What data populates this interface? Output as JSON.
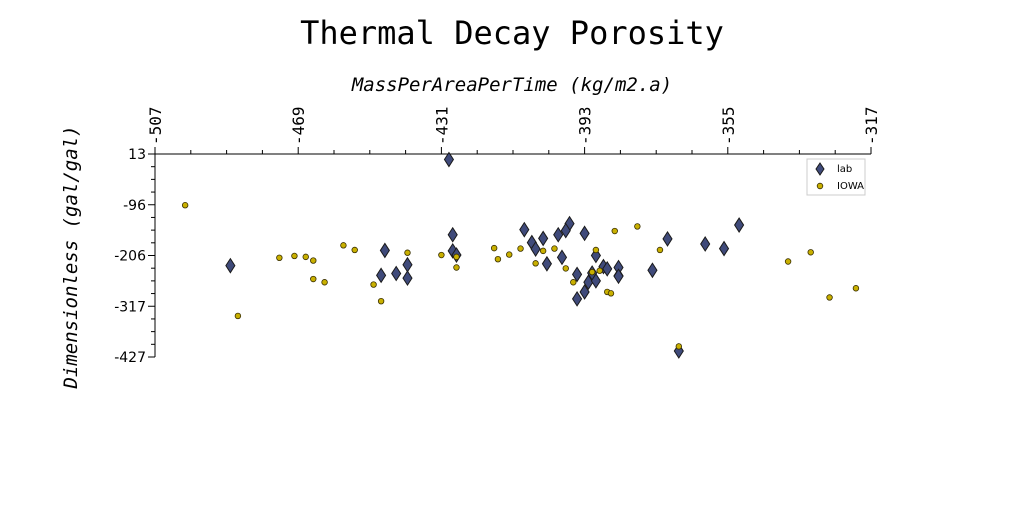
{
  "chart_data": {
    "type": "scatter",
    "title": "Thermal Decay Porosity",
    "xlabel": "MassPerAreaPerTime (kg/m2.a)",
    "ylabel": "Dimensionless (gal/gal)",
    "xlim": [
      -507,
      -317
    ],
    "ylim": [
      -427,
      13
    ],
    "x_axis_position": "top",
    "x_ticks": [
      "-507",
      "-469",
      "-431",
      "-393",
      "-355",
      "-317"
    ],
    "y_ticks": [
      "13",
      "-96",
      "-206",
      "-317",
      "-427"
    ],
    "grid": false,
    "legend_position": "top-right",
    "series": [
      {
        "name": "lab",
        "marker": "diamond",
        "color": "#3f4a7a",
        "points": [
          [
            -487,
            -229
          ],
          [
            -429,
            1
          ],
          [
            -428,
            -162
          ],
          [
            -428,
            -197
          ],
          [
            -427,
            -206
          ],
          [
            -440,
            -227
          ],
          [
            -443,
            -246
          ],
          [
            -447,
            -250
          ],
          [
            -440,
            -256
          ],
          [
            -446,
            -196
          ],
          [
            -409,
            -151
          ],
          [
            -407,
            -179
          ],
          [
            -406,
            -193
          ],
          [
            -403,
            -225
          ],
          [
            -404,
            -170
          ],
          [
            -400,
            -162
          ],
          [
            -397,
            -138
          ],
          [
            -393,
            -159
          ],
          [
            -398,
            -153
          ],
          [
            -384,
            -251
          ],
          [
            -390,
            -207
          ],
          [
            -391,
            -245
          ],
          [
            -392,
            -265
          ],
          [
            -393,
            -286
          ],
          [
            -395,
            -248
          ],
          [
            -395,
            -301
          ],
          [
            -399,
            -211
          ],
          [
            -388,
            -231
          ],
          [
            -387,
            -236
          ],
          [
            -384,
            -233
          ],
          [
            -384,
            -252
          ],
          [
            -390,
            -262
          ],
          [
            -375,
            -239
          ],
          [
            -371,
            -171
          ],
          [
            -368,
            -414
          ],
          [
            -361,
            -182
          ],
          [
            -356,
            -192
          ],
          [
            -352,
            -141
          ]
        ]
      },
      {
        "name": "IOWA",
        "marker": "circle",
        "color": "#c9b000",
        "points": [
          [
            -499,
            -98
          ],
          [
            -485,
            -338
          ],
          [
            -474,
            -212
          ],
          [
            -470,
            -208
          ],
          [
            -467,
            -210
          ],
          [
            -465,
            -218
          ],
          [
            -465,
            -258
          ],
          [
            -462,
            -265
          ],
          [
            -457,
            -185
          ],
          [
            -454,
            -195
          ],
          [
            -449,
            -270
          ],
          [
            -447,
            -306
          ],
          [
            -440,
            -201
          ],
          [
            -431,
            -206
          ],
          [
            -427,
            -210
          ],
          [
            -427,
            -233
          ],
          [
            -416,
            -215
          ],
          [
            -417,
            -191
          ],
          [
            -413,
            -205
          ],
          [
            -410,
            -192
          ],
          [
            -406,
            -224
          ],
          [
            -404,
            -197
          ],
          [
            -401,
            -192
          ],
          [
            -398,
            -235
          ],
          [
            -396,
            -265
          ],
          [
            -390,
            -195
          ],
          [
            -389,
            -240
          ],
          [
            -387,
            -286
          ],
          [
            -391,
            -243
          ],
          [
            -385,
            -154
          ],
          [
            -386,
            -289
          ],
          [
            -368,
            -404
          ],
          [
            -379,
            -144
          ],
          [
            -373,
            -195
          ],
          [
            -339,
            -220
          ],
          [
            -328,
            -298
          ],
          [
            -321,
            -278
          ],
          [
            -333,
            -200
          ]
        ]
      }
    ]
  }
}
